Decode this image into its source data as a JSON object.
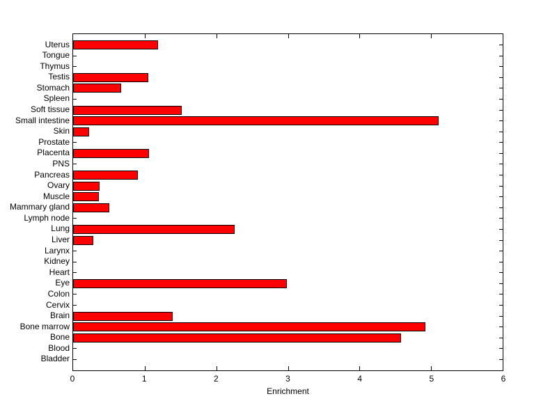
{
  "figure": {
    "background_color": "#ffffff",
    "axis_color": "#000000"
  },
  "chart_data": {
    "type": "bar",
    "orientation": "horizontal",
    "title": "",
    "xlabel": "Enrichment",
    "ylabel": "",
    "xlim": [
      0,
      6
    ],
    "xticks": [
      "0",
      "1",
      "2",
      "3",
      "4",
      "5",
      "6"
    ],
    "xtick_values": [
      0,
      1,
      2,
      3,
      4,
      5,
      6
    ],
    "grid": false,
    "legend": null,
    "bar_color": "#ff0000",
    "bar_edge_color": "#000000",
    "category_order": "top-to-bottom",
    "categories": [
      "Uterus",
      "Tongue",
      "Thymus",
      "Testis",
      "Stomach",
      "Spleen",
      "Soft tissue",
      "Small intestine",
      "Skin",
      "Prostate",
      "Placenta",
      "PNS",
      "Pancreas",
      "Ovary",
      "Muscle",
      "Mammary gland",
      "Lymph node",
      "Lung",
      "Liver",
      "Larynx",
      "Kidney",
      "Heart",
      "Eye",
      "Colon",
      "Cervix",
      "Brain",
      "Bone marrow",
      "Bone",
      "Blood",
      "Bladder"
    ],
    "values": [
      1.19,
      0,
      0,
      1.05,
      0.67,
      0,
      1.52,
      5.11,
      0.22,
      0,
      1.06,
      0,
      0.9,
      0.37,
      0.36,
      0.51,
      0,
      2.26,
      0.28,
      0,
      0,
      0,
      2.99,
      0,
      0,
      1.39,
      4.92,
      4.58,
      0,
      0
    ]
  }
}
